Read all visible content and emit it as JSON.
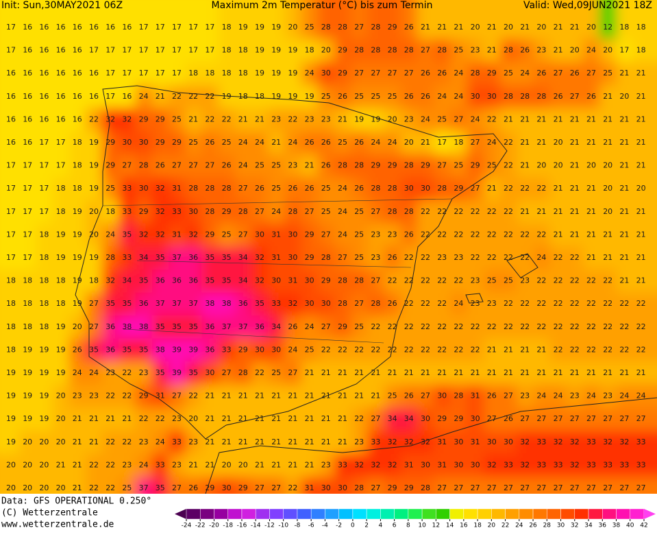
{
  "header": {
    "init": "Init: Sun,30MAY2021 06Z",
    "title": "Maximum 2m Temperatur (°C) bis zum Termin",
    "valid": "Valid: Wed,09JUN2021 18Z"
  },
  "map": {
    "rows": [
      [
        17,
        16,
        16,
        16,
        16,
        16,
        16,
        16,
        17,
        17,
        17,
        17,
        17,
        18,
        19,
        19,
        19,
        20,
        25,
        28,
        28,
        27,
        28,
        29,
        26,
        21,
        21,
        21,
        20,
        21,
        20,
        21,
        20,
        21,
        21,
        20,
        12,
        18,
        18
      ],
      [
        17,
        16,
        16,
        16,
        16,
        17,
        17,
        17,
        17,
        17,
        17,
        17,
        17,
        18,
        18,
        19,
        19,
        19,
        18,
        20,
        29,
        28,
        28,
        28,
        28,
        27,
        28,
        25,
        23,
        21,
        28,
        26,
        23,
        21,
        20,
        24,
        20,
        17,
        18
      ],
      [
        16,
        16,
        16,
        16,
        16,
        16,
        17,
        17,
        17,
        17,
        17,
        18,
        18,
        18,
        18,
        19,
        19,
        19,
        24,
        30,
        29,
        27,
        27,
        27,
        27,
        26,
        26,
        24,
        28,
        29,
        25,
        24,
        26,
        27,
        26,
        27,
        25,
        21,
        21
      ],
      [
        16,
        16,
        16,
        16,
        16,
        16,
        17,
        16,
        24,
        21,
        22,
        22,
        22,
        19,
        18,
        18,
        19,
        19,
        19,
        25,
        26,
        25,
        25,
        25,
        26,
        26,
        24,
        24,
        30,
        30,
        28,
        28,
        28,
        26,
        27,
        26,
        21,
        20,
        21
      ],
      [
        16,
        16,
        16,
        16,
        16,
        22,
        32,
        32,
        29,
        29,
        25,
        21,
        22,
        22,
        21,
        21,
        23,
        22,
        23,
        23,
        21,
        19,
        19,
        20,
        23,
        24,
        25,
        27,
        24,
        22,
        21,
        21,
        21,
        21,
        21,
        21,
        21,
        21,
        21
      ],
      [
        16,
        16,
        17,
        17,
        18,
        19,
        29,
        30,
        30,
        29,
        29,
        25,
        26,
        25,
        24,
        24,
        21,
        24,
        26,
        26,
        25,
        26,
        24,
        24,
        20,
        21,
        17,
        18,
        27,
        24,
        22,
        21,
        21,
        20,
        21,
        21,
        21,
        21,
        21
      ],
      [
        17,
        17,
        17,
        17,
        18,
        19,
        29,
        27,
        28,
        26,
        27,
        27,
        27,
        26,
        24,
        25,
        25,
        23,
        21,
        26,
        28,
        28,
        29,
        29,
        28,
        29,
        27,
        25,
        29,
        25,
        22,
        21,
        20,
        20,
        21,
        20,
        20,
        21,
        21
      ],
      [
        17,
        17,
        17,
        18,
        18,
        19,
        25,
        33,
        30,
        32,
        31,
        28,
        28,
        28,
        27,
        26,
        25,
        26,
        26,
        25,
        24,
        26,
        28,
        28,
        30,
        30,
        28,
        29,
        27,
        21,
        22,
        22,
        22,
        21,
        21,
        21,
        20,
        21,
        20
      ],
      [
        17,
        17,
        17,
        18,
        19,
        20,
        18,
        33,
        29,
        32,
        33,
        30,
        28,
        29,
        28,
        27,
        24,
        28,
        27,
        25,
        24,
        25,
        27,
        28,
        28,
        22,
        22,
        22,
        22,
        22,
        22,
        21,
        21,
        21,
        21,
        21,
        20,
        21,
        21
      ],
      [
        17,
        17,
        18,
        19,
        19,
        20,
        24,
        35,
        32,
        32,
        31,
        32,
        29,
        25,
        27,
        30,
        31,
        30,
        29,
        27,
        24,
        25,
        23,
        23,
        26,
        22,
        22,
        22,
        22,
        22,
        22,
        22,
        22,
        21,
        21,
        21,
        21,
        21,
        21
      ],
      [
        17,
        17,
        18,
        19,
        19,
        19,
        28,
        33,
        34,
        35,
        37,
        36,
        35,
        35,
        34,
        32,
        31,
        30,
        29,
        28,
        27,
        25,
        23,
        26,
        22,
        22,
        23,
        23,
        22,
        22,
        22,
        22,
        24,
        22,
        22,
        21,
        21,
        21,
        21
      ],
      [
        18,
        18,
        18,
        18,
        19,
        18,
        32,
        34,
        35,
        36,
        36,
        36,
        35,
        35,
        34,
        32,
        30,
        31,
        30,
        29,
        28,
        28,
        27,
        22,
        22,
        22,
        22,
        22,
        23,
        25,
        25,
        23,
        22,
        22,
        22,
        22,
        22,
        21,
        21
      ],
      [
        18,
        18,
        18,
        18,
        19,
        27,
        35,
        35,
        36,
        37,
        37,
        37,
        38,
        38,
        36,
        35,
        33,
        32,
        30,
        30,
        28,
        27,
        28,
        26,
        22,
        22,
        22,
        24,
        23,
        23,
        22,
        22,
        22,
        22,
        22,
        22,
        22,
        22,
        22
      ],
      [
        18,
        18,
        18,
        19,
        20,
        27,
        36,
        38,
        38,
        35,
        35,
        35,
        36,
        37,
        37,
        36,
        34,
        26,
        24,
        27,
        29,
        25,
        22,
        22,
        22,
        22,
        22,
        22,
        22,
        22,
        22,
        22,
        22,
        22,
        22,
        22,
        22,
        22,
        22
      ],
      [
        18,
        19,
        19,
        19,
        26,
        35,
        36,
        35,
        35,
        38,
        39,
        39,
        36,
        33,
        29,
        30,
        30,
        24,
        25,
        22,
        22,
        22,
        22,
        22,
        22,
        22,
        22,
        22,
        22,
        21,
        21,
        21,
        21,
        22,
        22,
        22,
        22,
        22,
        22
      ],
      [
        19,
        19,
        19,
        19,
        24,
        24,
        23,
        22,
        23,
        35,
        39,
        35,
        30,
        27,
        28,
        22,
        25,
        27,
        21,
        21,
        21,
        21,
        21,
        21,
        21,
        21,
        21,
        21,
        21,
        21,
        21,
        21,
        21,
        21,
        21,
        21,
        21,
        21,
        21
      ],
      [
        19,
        19,
        19,
        20,
        23,
        23,
        22,
        22,
        29,
        31,
        27,
        22,
        21,
        21,
        21,
        21,
        21,
        21,
        21,
        21,
        21,
        21,
        21,
        25,
        26,
        27,
        30,
        28,
        31,
        26,
        27,
        23,
        24,
        24,
        23,
        24,
        23,
        24,
        24
      ],
      [
        19,
        19,
        19,
        20,
        21,
        21,
        21,
        21,
        22,
        22,
        23,
        20,
        21,
        21,
        21,
        21,
        21,
        21,
        21,
        21,
        21,
        22,
        27,
        34,
        34,
        30,
        29,
        29,
        30,
        27,
        26,
        27,
        27,
        27,
        27,
        27,
        27,
        27,
        27
      ],
      [
        19,
        20,
        20,
        20,
        21,
        21,
        22,
        22,
        23,
        24,
        33,
        23,
        21,
        21,
        21,
        21,
        21,
        21,
        21,
        21,
        21,
        23,
        33,
        32,
        32,
        32,
        31,
        30,
        31,
        30,
        30,
        32,
        33,
        32,
        32,
        33,
        32,
        32,
        33
      ],
      [
        20,
        20,
        20,
        21,
        21,
        22,
        22,
        23,
        24,
        33,
        23,
        21,
        21,
        20,
        20,
        21,
        21,
        21,
        21,
        23,
        33,
        32,
        32,
        32,
        31,
        30,
        31,
        30,
        30,
        32,
        33,
        32,
        33,
        33,
        32,
        33,
        33,
        33,
        33
      ],
      [
        20,
        20,
        20,
        20,
        21,
        22,
        22,
        25,
        37,
        35,
        27,
        26,
        29,
        30,
        29,
        27,
        27,
        22,
        31,
        30,
        30,
        28,
        27,
        29,
        29,
        28,
        27,
        27,
        27,
        27,
        27,
        27,
        27,
        27,
        27,
        27,
        27,
        27,
        27
      ]
    ]
  },
  "footer": {
    "data": "Data: GFS OPERATIONAL 0.250°",
    "copyright": "(C) Wetterzentrale",
    "url": "www.wetterzentrale.de"
  },
  "colorbar": {
    "ticks": [
      -24,
      -22,
      -20,
      -18,
      -16,
      -14,
      -12,
      -10,
      -8,
      -6,
      -4,
      -2,
      0,
      2,
      4,
      6,
      8,
      10,
      12,
      14,
      16,
      18,
      20,
      22,
      24,
      26,
      28,
      30,
      32,
      34,
      36,
      38,
      40,
      42
    ],
    "colors": [
      "#4b0050",
      "#5c0065",
      "#7a0080",
      "#9600a0",
      "#c010d0",
      "#d020e0",
      "#a030f0",
      "#8040ff",
      "#6050ff",
      "#4060ff",
      "#3080ff",
      "#20a0ff",
      "#00c0ff",
      "#00e0ff",
      "#00f0e0",
      "#00f0b0",
      "#00f080",
      "#20f050",
      "#40e020",
      "#30d000",
      "#f0f000",
      "#ffe000",
      "#ffd000",
      "#ffb800",
      "#ffa000",
      "#ff8c00",
      "#ff7800",
      "#ff6400",
      "#ff4c00",
      "#ff3000",
      "#ff1840",
      "#ff1080",
      "#ff10b0",
      "#ff20d0",
      "#ff40f0"
    ]
  }
}
